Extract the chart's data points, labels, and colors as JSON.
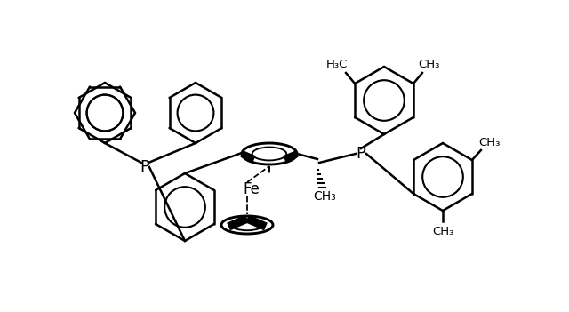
{
  "background_color": "#ffffff",
  "line_color": "#000000",
  "line_width": 1.8,
  "font_size": 10,
  "figsize": [
    6.4,
    3.51
  ],
  "dpi": 100,
  "xlim": [
    0,
    640
  ],
  "ylim": [
    0,
    351
  ]
}
